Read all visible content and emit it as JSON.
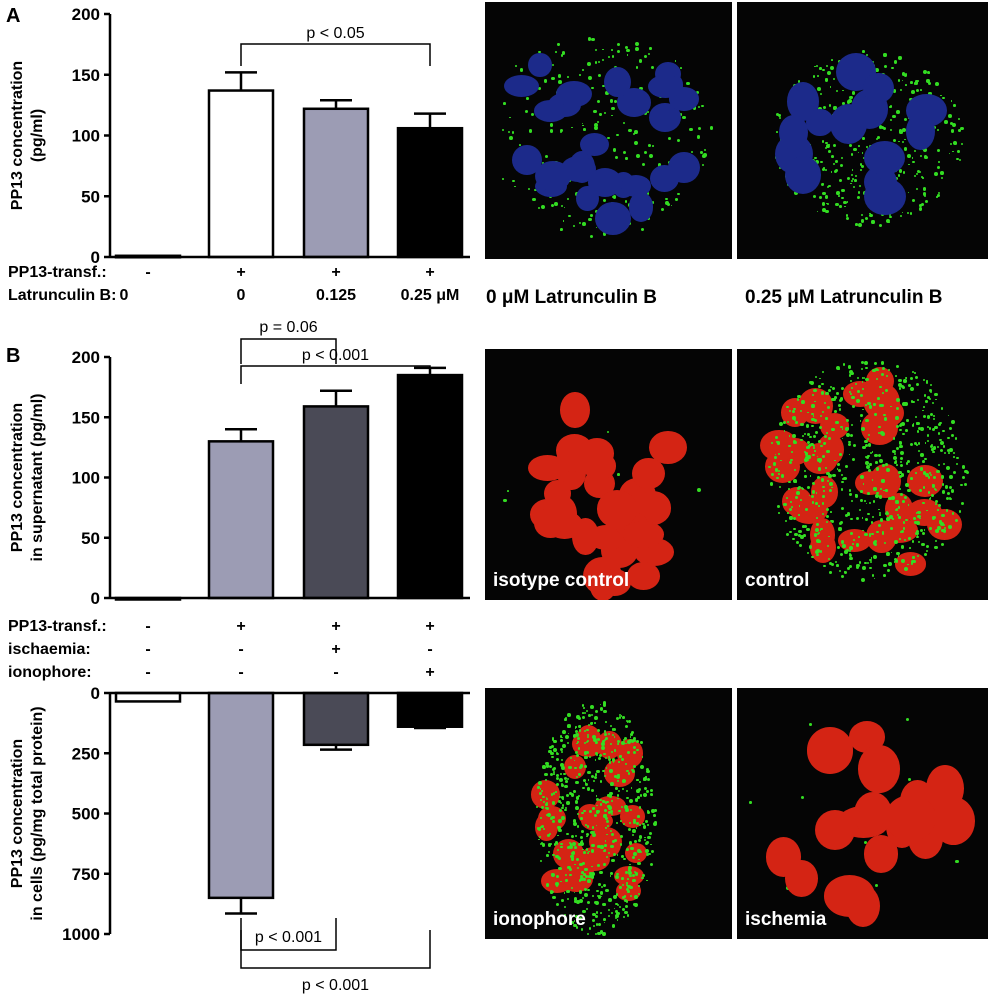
{
  "panel_labels": {
    "a": "A",
    "b": "B"
  },
  "chart_data": [
    {
      "type": "bar",
      "panel": "A",
      "ylabel_lines": [
        "PP13 concentration",
        "(pg/ml)"
      ],
      "ylim": [
        0,
        200
      ],
      "yticks": [
        "0",
        "50",
        "100",
        "150",
        "200"
      ],
      "categories": [
        "-",
        "+",
        "+",
        "+"
      ],
      "row_labels": [
        {
          "label": "PP13-transf.:",
          "values": [
            "-",
            "+",
            "+",
            "+"
          ]
        },
        {
          "label": "Latrunculin B:",
          "values": [
            "0",
            "0",
            "0.125",
            "0.25 μM"
          ]
        }
      ],
      "values": [
        1,
        137,
        122,
        106
      ],
      "errors": [
        0,
        15,
        7,
        12
      ],
      "colors": [
        "#ffffff",
        "#ffffff",
        "#9c9cb4",
        "#000000"
      ],
      "annotations": [
        {
          "text": "p < 0.05",
          "from": 1,
          "to": 3
        }
      ]
    },
    {
      "type": "bar",
      "panel": "B-top",
      "ylabel_lines": [
        "PP13 concentration",
        "in supernatant (pg/ml)"
      ],
      "ylim": [
        0,
        200
      ],
      "yticks": [
        "0",
        "50",
        "100",
        "150",
        "200"
      ],
      "row_labels": [
        {
          "label": "PP13-transf.:",
          "values": [
            "-",
            "+",
            "+",
            "+"
          ]
        },
        {
          "label": "ischaemia:",
          "values": [
            "-",
            "-",
            "+",
            "-"
          ]
        },
        {
          "label": "ionophore:",
          "values": [
            "-",
            "-",
            "-",
            "+"
          ]
        }
      ],
      "values": [
        0,
        130,
        159,
        185
      ],
      "errors": [
        0,
        10,
        13,
        6
      ],
      "colors": [
        "#ffffff",
        "#9c9cb4",
        "#4a4a56",
        "#000000"
      ],
      "annotations": [
        {
          "text": "p = 0.06",
          "from": 1,
          "to": 2
        },
        {
          "text": "p < 0.001",
          "from": 1,
          "to": 3
        }
      ]
    },
    {
      "type": "bar",
      "panel": "B-bottom",
      "ylabel_lines": [
        "PP13 concentration",
        "in cells (pg/mg total protein)"
      ],
      "ylim": [
        0,
        1000
      ],
      "yticks": [
        "0",
        "250",
        "500",
        "750",
        "1000"
      ],
      "values": [
        35,
        850,
        215,
        140
      ],
      "errors": [
        0,
        65,
        20,
        5
      ],
      "colors": [
        "#ffffff",
        "#9c9cb4",
        "#4a4a56",
        "#000000"
      ],
      "annotations": [
        {
          "text": "p < 0.001",
          "from": 1,
          "to": 2
        },
        {
          "text": "p < 0.001",
          "from": 1,
          "to": 3
        }
      ]
    }
  ],
  "images": {
    "a_left_label": "0 μM Latrunculin B",
    "a_right_label": "0.25 μM Latrunculin B",
    "b1": "isotype control",
    "b2": "control",
    "b3": "ionophore",
    "b4": "ischemia"
  },
  "colors": {
    "nucleus_blue": "#1c2a8a",
    "stain_green": "#33dd22",
    "nucleus_red": "#d42414"
  }
}
